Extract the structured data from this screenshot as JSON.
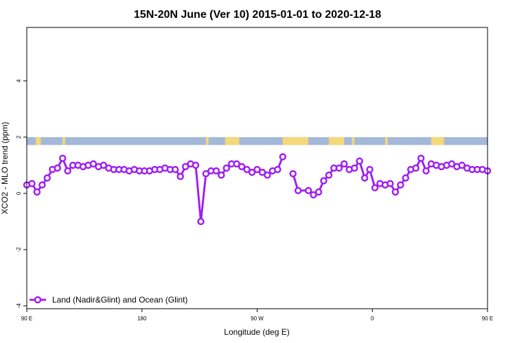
{
  "chart_data": {
    "type": "line",
    "title": "15N-20N June (Ver 10)   2015-01-01 to 2020-12-18",
    "xlabel": "Longitude (deg E)",
    "ylabel": "XCO2 - MLO trend (ppm)",
    "xlim": [
      90,
      450
    ],
    "ylim": [
      -4.1,
      5.9
    ],
    "x_ticks": [
      {
        "value": 90,
        "label": "90 E"
      },
      {
        "value": 180,
        "label": "180"
      },
      {
        "value": 270,
        "label": "90 W"
      },
      {
        "value": 360,
        "label": "0"
      },
      {
        "value": 450,
        "label": "90 E"
      },
      {
        "value": 540,
        "label": "180"
      }
    ],
    "y_ticks": [
      {
        "value": -4,
        "label": "-4"
      },
      {
        "value": -2,
        "label": "-2"
      },
      {
        "value": 0,
        "label": "0"
      },
      {
        "value": 2,
        "label": "2"
      },
      {
        "value": 4,
        "label": "4"
      }
    ],
    "colors": {
      "series": "#a020f0",
      "ocean": "#a4b8d9",
      "land": "#f5d87a"
    },
    "legend": {
      "placement": "bottom-left"
    },
    "series": [
      {
        "name": "Land (Nadir&Glint) and Ocean (Glint)",
        "segments": [
          [
            [
              90,
              0.3
            ],
            [
              94,
              0.35
            ],
            [
              98,
              0.05
            ],
            [
              102,
              0.3
            ],
            [
              106,
              0.55
            ],
            [
              110,
              0.85
            ],
            [
              114,
              0.9
            ],
            [
              118,
              1.25
            ],
            [
              122,
              0.8
            ],
            [
              126,
              1.0
            ],
            [
              130,
              1.0
            ],
            [
              134,
              0.95
            ],
            [
              138,
              1.0
            ],
            [
              142,
              1.05
            ],
            [
              146,
              0.95
            ],
            [
              150,
              1.0
            ],
            [
              154,
              0.9
            ],
            [
              158,
              0.85
            ],
            [
              162,
              0.85
            ],
            [
              166,
              0.85
            ],
            [
              170,
              0.8
            ],
            [
              174,
              0.85
            ],
            [
              178,
              0.8
            ],
            [
              182,
              0.8
            ],
            [
              186,
              0.8
            ],
            [
              190,
              0.85
            ],
            [
              194,
              0.85
            ],
            [
              198,
              0.9
            ],
            [
              202,
              0.85
            ],
            [
              206,
              0.85
            ],
            [
              210,
              0.6
            ],
            [
              214,
              0.95
            ],
            [
              218,
              1.05
            ],
            [
              222,
              1.0
            ],
            [
              226,
              -1.0
            ],
            [
              230,
              0.7
            ],
            [
              234,
              0.8
            ],
            [
              238,
              0.8
            ],
            [
              242,
              0.65
            ],
            [
              246,
              0.9
            ],
            [
              250,
              1.05
            ],
            [
              254,
              1.05
            ],
            [
              258,
              0.95
            ],
            [
              262,
              0.85
            ],
            [
              266,
              0.75
            ],
            [
              270,
              0.85
            ],
            [
              274,
              0.75
            ],
            [
              278,
              0.65
            ],
            [
              282,
              0.8
            ],
            [
              286,
              0.85
            ],
            [
              290,
              1.3
            ]
          ],
          [
            [
              298,
              0.7
            ],
            [
              302,
              0.1
            ],
            [
              310,
              0.1
            ],
            [
              314,
              -0.05
            ],
            [
              318,
              0.05
            ],
            [
              322,
              0.45
            ],
            [
              326,
              0.65
            ],
            [
              330,
              0.9
            ],
            [
              334,
              0.9
            ],
            [
              338,
              1.05
            ],
            [
              342,
              0.85
            ],
            [
              346,
              0.9
            ],
            [
              350,
              1.15
            ],
            [
              354,
              0.55
            ],
            [
              358,
              0.85
            ],
            [
              362,
              0.2
            ],
            [
              366,
              0.35
            ],
            [
              370,
              0.3
            ],
            [
              374,
              0.35
            ],
            [
              378,
              0.05
            ],
            [
              382,
              0.3
            ],
            [
              386,
              0.55
            ],
            [
              390,
              0.85
            ],
            [
              394,
              0.9
            ],
            [
              398,
              1.25
            ],
            [
              402,
              0.8
            ],
            [
              406,
              1.05
            ],
            [
              410,
              1.0
            ],
            [
              414,
              0.95
            ],
            [
              418,
              1.0
            ],
            [
              422,
              1.05
            ],
            [
              426,
              0.95
            ],
            [
              430,
              1.0
            ],
            [
              434,
              0.9
            ],
            [
              438,
              0.85
            ],
            [
              442,
              0.85
            ],
            [
              446,
              0.85
            ],
            [
              450,
              0.8
            ]
          ]
        ]
      }
    ],
    "background_band": {
      "y_range": [
        1.72,
        2.0
      ],
      "land_spans": [
        [
          97,
          101
        ],
        [
          118,
          120
        ],
        [
          230,
          232
        ],
        [
          245,
          256
        ],
        [
          290,
          310
        ],
        [
          326,
          338
        ],
        [
          344,
          346
        ],
        [
          370,
          372
        ],
        [
          406,
          416
        ]
      ]
    }
  }
}
